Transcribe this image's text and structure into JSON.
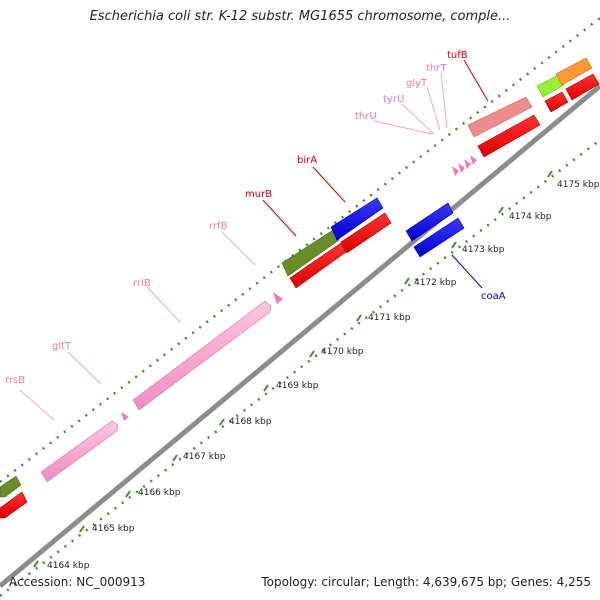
{
  "title": "Escherichia coli str. K-12 substr. MG1655 chromosome, comple...",
  "footer": {
    "accession": "Accession: NC_000913",
    "summary": "Topology: circular; Length: 4,639,675 bp; Genes: 4,255"
  },
  "colors": {
    "backbone": "#8c8c8c",
    "tick_top": "#3f8f2a",
    "tick_bottom": "#3f8f2a",
    "rRNA": "#f5a3cc",
    "tRNA": "#f07ab8",
    "forward_red": "#ee0000",
    "reverse_red": "#ee0000",
    "blue_cds": "#1a1adf",
    "olive_cds": "#6a8c2a",
    "salmon_cds": "#ee8c8c",
    "lime_cds": "#99ee33",
    "orange_cds": "#ff9933",
    "label_pink": "#e87aaf",
    "label_red": "#cc0000",
    "label_blue": "#0000cc"
  },
  "scale_labels": [
    "4164 kbp",
    "4165 kbp",
    "4166 kbp",
    "4167 kbp",
    "4168 kbp",
    "4169 kbp",
    "4170 kbp",
    "4171 kbp",
    "4172 kbp",
    "4173 kbp",
    "4174 kbp",
    "4175 kbp"
  ],
  "gene_labels": {
    "rrsB": "rrsB",
    "gltT": "gltT",
    "rrlB": "rrlB",
    "rrfB": "rrfB",
    "murB": "murB",
    "birA": "birA",
    "thrU": "thrU",
    "tyrU": "tyrU",
    "glyT": "glyT",
    "thrT": "thrT",
    "tufB": "tufB",
    "coaA": "coaA"
  }
}
